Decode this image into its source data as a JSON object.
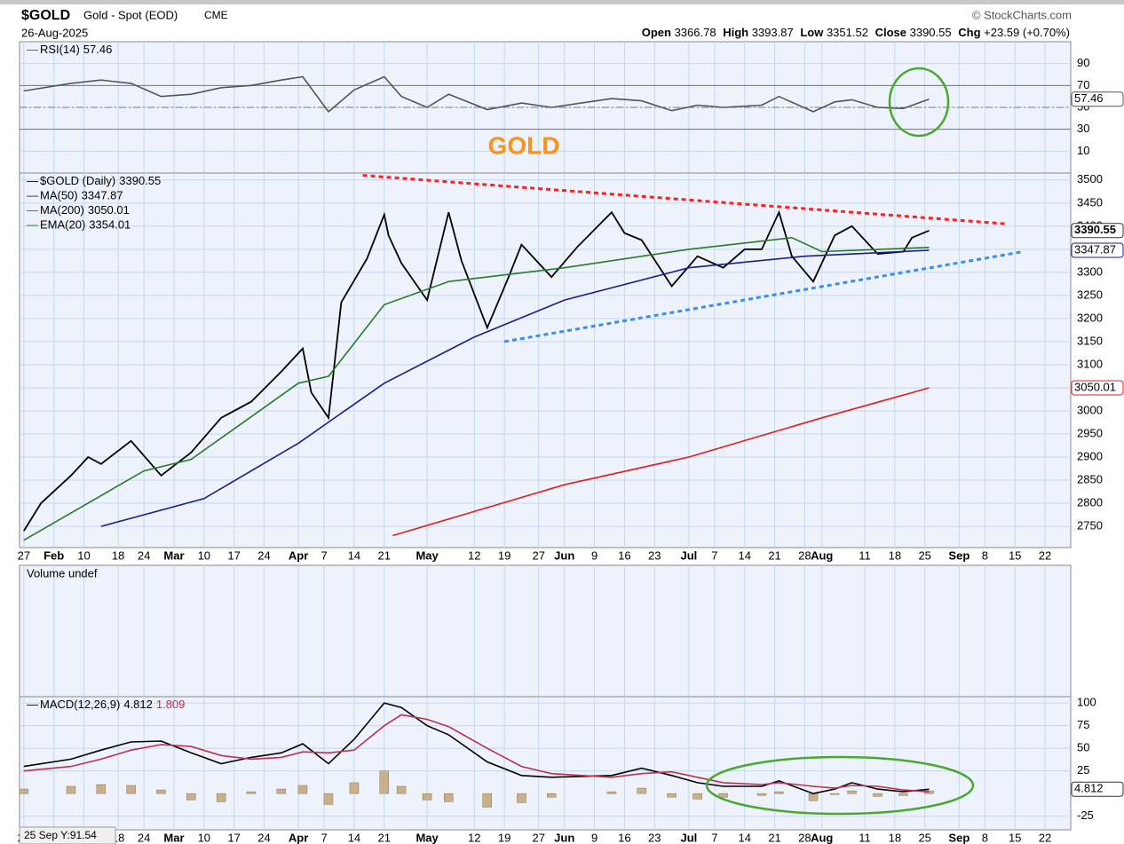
{
  "header": {
    "symbol": "$GOLD",
    "name": "Gold - Spot (EOD)",
    "exchange": "CME",
    "source": "© StockCharts.com",
    "date": "26-Aug-2025",
    "open_label": "Open",
    "open": 3366.78,
    "high_label": "High",
    "high": 3393.87,
    "low_label": "Low",
    "low": 3351.52,
    "close_label": "Close",
    "close": 3390.55,
    "chg_label": "Chg",
    "chg": "+23.59 (+0.70%)"
  },
  "annotation": "GOLD",
  "crosshair": "25 Sep Y:91.54",
  "chart_data": [
    {
      "type": "line",
      "xlim": [
        "2025-01-26",
        "2025-09-28"
      ],
      "ylim": [
        -10,
        110
      ],
      "yticks": [
        10,
        30,
        50,
        70,
        90
      ],
      "bands": [
        30,
        70
      ],
      "midline": 50,
      "x": [
        "2025-01-27",
        "2025-02-07",
        "2025-02-14",
        "2025-02-21",
        "2025-02-28",
        "2025-03-07",
        "2025-03-14",
        "2025-03-21",
        "2025-03-28",
        "2025-04-02",
        "2025-04-08",
        "2025-04-14",
        "2025-04-21",
        "2025-04-25",
        "2025-05-01",
        "2025-05-06",
        "2025-05-15",
        "2025-05-23",
        "2025-05-30",
        "2025-06-13",
        "2025-06-20",
        "2025-06-27",
        "2025-07-03",
        "2025-07-09",
        "2025-07-18",
        "2025-07-22",
        "2025-07-30",
        "2025-08-04",
        "2025-08-08",
        "2025-08-14",
        "2025-08-20",
        "2025-08-26"
      ],
      "series": [
        {
          "name": "RSI(14)",
          "color": "#555555",
          "end_label": true,
          "values": [
            65,
            72,
            75,
            72,
            60,
            62,
            68,
            70,
            75,
            78,
            46,
            66,
            78,
            60,
            50,
            62,
            48,
            54,
            50,
            58,
            56,
            47,
            52,
            50,
            52,
            60,
            46,
            55,
            57,
            50,
            49,
            57.46
          ]
        }
      ]
    },
    {
      "type": "line",
      "xlim": [
        "2025-01-26",
        "2025-09-28"
      ],
      "ylim": [
        2704,
        3515
      ],
      "yticks": [
        2750,
        2800,
        2850,
        2900,
        2950,
        3000,
        3050,
        3100,
        3150,
        3200,
        3250,
        3300,
        3350,
        3400,
        3450,
        3500
      ],
      "xticks": [
        {
          "value": "2025-01-27",
          "label": "27"
        },
        {
          "value": "2025-02-03",
          "label": "Feb"
        },
        {
          "value": "2025-02-10",
          "label": "10"
        },
        {
          "value": "2025-02-18",
          "label": "18"
        },
        {
          "value": "2025-02-24",
          "label": "24"
        },
        {
          "value": "2025-03-03",
          "label": "Mar"
        },
        {
          "value": "2025-03-10",
          "label": "10"
        },
        {
          "value": "2025-03-17",
          "label": "17"
        },
        {
          "value": "2025-03-24",
          "label": "24"
        },
        {
          "value": "2025-04-01",
          "label": "Apr"
        },
        {
          "value": "2025-04-07",
          "label": "7"
        },
        {
          "value": "2025-04-14",
          "label": "14"
        },
        {
          "value": "2025-04-21",
          "label": "21"
        },
        {
          "value": "2025-05-01",
          "label": "May"
        },
        {
          "value": "2025-05-12",
          "label": "12"
        },
        {
          "value": "2025-05-19",
          "label": "19"
        },
        {
          "value": "2025-05-27",
          "label": "27"
        },
        {
          "value": "2025-06-02",
          "label": "Jun"
        },
        {
          "value": "2025-06-09",
          "label": "9"
        },
        {
          "value": "2025-06-16",
          "label": "16"
        },
        {
          "value": "2025-06-23",
          "label": "23"
        },
        {
          "value": "2025-07-01",
          "label": "Jul"
        },
        {
          "value": "2025-07-07",
          "label": "7"
        },
        {
          "value": "2025-07-14",
          "label": "14"
        },
        {
          "value": "2025-07-21",
          "label": "21"
        },
        {
          "value": "2025-07-28",
          "label": "28"
        },
        {
          "value": "2025-08-01",
          "label": "Aug"
        },
        {
          "value": "2025-08-11",
          "label": "11"
        },
        {
          "value": "2025-08-18",
          "label": "18"
        },
        {
          "value": "2025-08-25",
          "label": "25"
        },
        {
          "value": "2025-09-02",
          "label": "Sep"
        },
        {
          "value": "2025-09-08",
          "label": "8"
        },
        {
          "value": "2025-09-15",
          "label": "15"
        },
        {
          "value": "2025-09-22",
          "label": "22"
        }
      ],
      "series": [
        {
          "name": "$GOLD (Daily)",
          "color": "#000000",
          "end_label": true,
          "x": [
            "2025-01-27",
            "2025-01-31",
            "2025-02-07",
            "2025-02-11",
            "2025-02-14",
            "2025-02-21",
            "2025-02-28",
            "2025-03-07",
            "2025-03-14",
            "2025-03-21",
            "2025-03-28",
            "2025-04-02",
            "2025-04-04",
            "2025-04-08",
            "2025-04-11",
            "2025-04-17",
            "2025-04-21",
            "2025-04-22",
            "2025-04-25",
            "2025-05-01",
            "2025-05-06",
            "2025-05-09",
            "2025-05-15",
            "2025-05-20",
            "2025-05-23",
            "2025-05-30",
            "2025-06-05",
            "2025-06-13",
            "2025-06-16",
            "2025-06-20",
            "2025-06-27",
            "2025-07-03",
            "2025-07-09",
            "2025-07-14",
            "2025-07-18",
            "2025-07-22",
            "2025-07-25",
            "2025-07-30",
            "2025-08-04",
            "2025-08-08",
            "2025-08-14",
            "2025-08-20",
            "2025-08-22",
            "2025-08-26"
          ],
          "values": [
            2740,
            2800,
            2860,
            2900,
            2885,
            2935,
            2860,
            2910,
            2985,
            3020,
            3085,
            3135,
            3040,
            2985,
            3235,
            3330,
            3425,
            3380,
            3320,
            3240,
            3430,
            3325,
            3180,
            3290,
            3360,
            3290,
            3355,
            3430,
            3385,
            3370,
            3270,
            3335,
            3310,
            3350,
            3350,
            3430,
            3335,
            3280,
            3380,
            3400,
            3340,
            3345,
            3375,
            3390.55
          ]
        },
        {
          "name": "MA(50)",
          "color": "#1c1c8a",
          "end_label": true,
          "x": [
            "2025-02-14",
            "2025-03-10",
            "2025-04-01",
            "2025-04-21",
            "2025-05-12",
            "2025-06-02",
            "2025-07-01",
            "2025-07-28",
            "2025-08-26"
          ],
          "values": [
            2750,
            2810,
            2930,
            3060,
            3160,
            3240,
            3310,
            3335,
            3347.87
          ]
        },
        {
          "name": "MA(200)",
          "color": "#e02020",
          "end_label": true,
          "x": [
            "2025-04-23",
            "2025-06-02",
            "2025-07-01",
            "2025-08-01",
            "2025-08-26"
          ],
          "values": [
            2730,
            2840,
            2900,
            2985,
            3050.01
          ]
        },
        {
          "name": "EMA(20)",
          "color": "#2a7a2a",
          "x": [
            "2025-01-27",
            "2025-02-24",
            "2025-03-07",
            "2025-04-01",
            "2025-04-08",
            "2025-04-21",
            "2025-05-06",
            "2025-06-02",
            "2025-07-01",
            "2025-07-25",
            "2025-08-01",
            "2025-08-26"
          ],
          "values": [
            2720,
            2870,
            2895,
            3060,
            3075,
            3230,
            3280,
            3310,
            3350,
            3375,
            3345,
            3354.01
          ]
        }
      ],
      "trendlines": [
        {
          "color": "#ff2020",
          "x": [
            "2025-04-16",
            "2025-09-13"
          ],
          "values": [
            3510,
            3405
          ]
        },
        {
          "color": "#3a8ef0",
          "x": [
            "2025-05-19",
            "2025-09-17"
          ],
          "values": [
            3150,
            3345
          ]
        }
      ]
    },
    {
      "type": "bar",
      "title": "Volume undef"
    },
    {
      "type": "line",
      "xlim": [
        "2025-01-26",
        "2025-09-28"
      ],
      "ylim": [
        -40,
        107
      ],
      "yticks": [
        -25,
        25,
        50,
        75,
        100
      ],
      "xticks": [
        {
          "value": "2025-01-27",
          "label": "27"
        },
        {
          "value": "2025-02-03",
          "label": "Feb"
        },
        {
          "value": "2025-02-10",
          "label": "10"
        },
        {
          "value": "2025-02-18",
          "label": "18"
        },
        {
          "value": "2025-02-24",
          "label": "24"
        },
        {
          "value": "2025-03-03",
          "label": "Mar"
        },
        {
          "value": "2025-03-10",
          "label": "10"
        },
        {
          "value": "2025-03-17",
          "label": "17"
        },
        {
          "value": "2025-03-24",
          "label": "24"
        },
        {
          "value": "2025-04-01",
          "label": "Apr"
        },
        {
          "value": "2025-04-07",
          "label": "7"
        },
        {
          "value": "2025-04-14",
          "label": "14"
        },
        {
          "value": "2025-04-21",
          "label": "21"
        },
        {
          "value": "2025-05-01",
          "label": "May"
        },
        {
          "value": "2025-05-12",
          "label": "12"
        },
        {
          "value": "2025-05-19",
          "label": "19"
        },
        {
          "value": "2025-05-27",
          "label": "27"
        },
        {
          "value": "2025-06-02",
          "label": "Jun"
        },
        {
          "value": "2025-06-09",
          "label": "9"
        },
        {
          "value": "2025-06-16",
          "label": "16"
        },
        {
          "value": "2025-06-23",
          "label": "23"
        },
        {
          "value": "2025-07-01",
          "label": "Jul"
        },
        {
          "value": "2025-07-07",
          "label": "7"
        },
        {
          "value": "2025-07-14",
          "label": "14"
        },
        {
          "value": "2025-07-21",
          "label": "21"
        },
        {
          "value": "2025-07-28",
          "label": "28"
        },
        {
          "value": "2025-08-01",
          "label": "Aug"
        },
        {
          "value": "2025-08-11",
          "label": "11"
        },
        {
          "value": "2025-08-18",
          "label": "18"
        },
        {
          "value": "2025-08-25",
          "label": "25"
        },
        {
          "value": "2025-09-02",
          "label": "Sep"
        },
        {
          "value": "2025-09-08",
          "label": "8"
        },
        {
          "value": "2025-09-15",
          "label": "15"
        },
        {
          "value": "2025-09-22",
          "label": "22"
        }
      ],
      "x": [
        "2025-01-27",
        "2025-02-07",
        "2025-02-14",
        "2025-02-21",
        "2025-02-28",
        "2025-03-07",
        "2025-03-14",
        "2025-03-21",
        "2025-03-28",
        "2025-04-02",
        "2025-04-08",
        "2025-04-14",
        "2025-04-21",
        "2025-04-25",
        "2025-05-01",
        "2025-05-06",
        "2025-05-15",
        "2025-05-23",
        "2025-05-30",
        "2025-06-13",
        "2025-06-20",
        "2025-06-27",
        "2025-07-03",
        "2025-07-09",
        "2025-07-18",
        "2025-07-22",
        "2025-07-30",
        "2025-08-04",
        "2025-08-08",
        "2025-08-14",
        "2025-08-20",
        "2025-08-26"
      ],
      "series": [
        {
          "type": "bar",
          "color": "#c8b08c",
          "values": [
            5,
            8,
            10,
            9,
            4,
            -7,
            -9,
            2,
            5,
            9,
            -12,
            12,
            25,
            8,
            -7,
            -9,
            -15,
            -10,
            -4,
            2,
            6,
            -4,
            -6,
            -4,
            -2,
            2,
            -8,
            -1,
            3,
            -3,
            -2,
            3.002
          ]
        },
        {
          "name": "MACD(12,26,9)",
          "color": "#000000",
          "end_label": true,
          "values": [
            30,
            38,
            48,
            57,
            58,
            45,
            33,
            40,
            45,
            55,
            33,
            60,
            100,
            95,
            75,
            65,
            35,
            20,
            18,
            20,
            28,
            20,
            12,
            8,
            8,
            14,
            0,
            5,
            12,
            5,
            2,
            4.812
          ]
        },
        {
          "color": "#c03050",
          "values": [
            25,
            30,
            38,
            48,
            54,
            52,
            42,
            38,
            40,
            46,
            45,
            48,
            75,
            87,
            82,
            74,
            50,
            30,
            22,
            18,
            22,
            24,
            18,
            12,
            10,
            12,
            8,
            6,
            9,
            8,
            4,
            1.809
          ]
        }
      ]
    }
  ]
}
